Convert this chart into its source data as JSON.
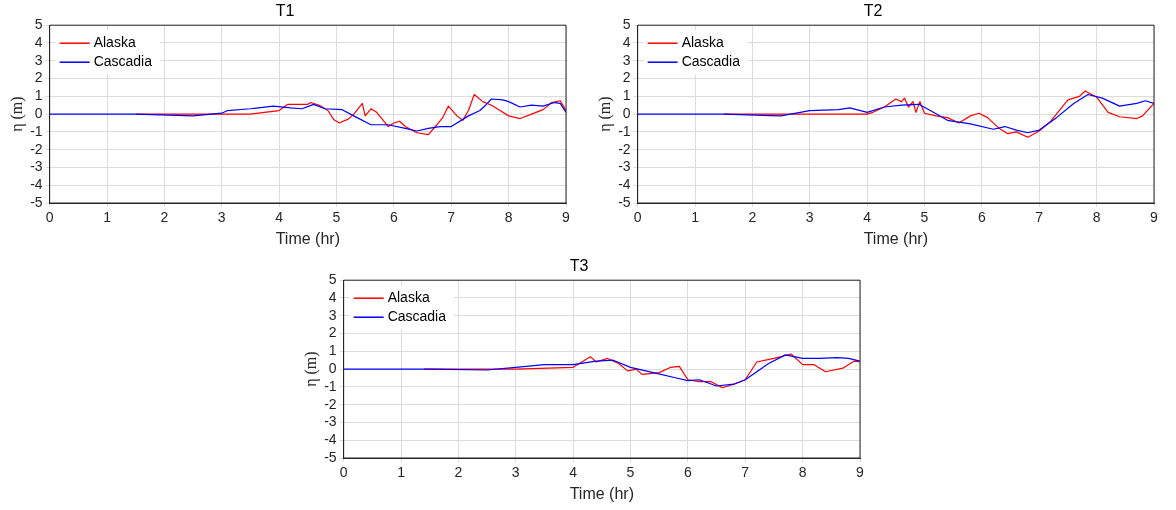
{
  "chart_data": [
    {
      "type": "line",
      "title": "T1",
      "xlabel": "Time (hr)",
      "ylabel": "η (m)",
      "xlim": [
        0,
        9
      ],
      "ylim": [
        -5,
        5
      ],
      "xticks": [
        0,
        1,
        2,
        3,
        4,
        5,
        6,
        7,
        8,
        9
      ],
      "yticks": [
        -5,
        -4,
        -3,
        -2,
        -1,
        0,
        1,
        2,
        3,
        4,
        5
      ],
      "grid": true,
      "legend": "top left",
      "series": [
        {
          "name": "Alaska",
          "color": "#ff0000",
          "x": [
            1.5,
            2,
            3,
            3.5,
            4,
            4.15,
            4.3,
            4.5,
            4.55,
            4.7,
            4.85,
            4.95,
            5.05,
            5.15,
            5.2,
            5.3,
            5.35,
            5.45,
            5.5,
            5.6,
            5.7,
            5.8,
            5.9,
            6,
            6.1,
            6.2,
            6.4,
            6.6,
            6.75,
            6.85,
            6.95,
            7.1,
            7.2,
            7.3,
            7.4,
            7.55,
            7.7,
            7.85,
            8,
            8.2,
            8.4,
            8.6,
            8.75,
            8.9,
            9
          ],
          "values": [
            0,
            0,
            0,
            0,
            0.2,
            0.55,
            0.55,
            0.55,
            0.65,
            0.5,
            0.2,
            -0.3,
            -0.5,
            -0.35,
            -0.3,
            0,
            0.2,
            0.6,
            -0.1,
            0.3,
            0.1,
            -0.3,
            -0.7,
            -0.5,
            -0.4,
            -0.7,
            -1.05,
            -1.15,
            -0.6,
            -0.2,
            0.45,
            -0.1,
            -0.35,
            0.2,
            1.1,
            0.7,
            0.5,
            0.2,
            -0.1,
            -0.25,
            0,
            0.25,
            0.65,
            0.75,
            0.2
          ]
        },
        {
          "name": "Cascadia",
          "color": "#0000ff",
          "x": [
            0,
            1,
            1.5,
            2.5,
            3,
            3.1,
            3.5,
            3.9,
            4.2,
            4.4,
            4.6,
            4.8,
            5.1,
            5.3,
            5.6,
            5.9,
            6.2,
            6.4,
            6.6,
            6.8,
            7,
            7.3,
            7.5,
            7.6,
            7.7,
            7.9,
            8,
            8.2,
            8.4,
            8.6,
            8.8,
            8.9,
            9
          ],
          "values": [
            0,
            0,
            0,
            -0.1,
            0.05,
            0.2,
            0.3,
            0.45,
            0.35,
            0.3,
            0.55,
            0.3,
            0.25,
            -0.1,
            -0.6,
            -0.6,
            -0.8,
            -0.95,
            -0.8,
            -0.7,
            -0.7,
            -0.1,
            0.2,
            0.5,
            0.85,
            0.8,
            0.7,
            0.4,
            0.5,
            0.45,
            0.65,
            0.6,
            0.1
          ]
        }
      ]
    },
    {
      "type": "line",
      "title": "T2",
      "xlabel": "Time (hr)",
      "ylabel": "η (m)",
      "xlim": [
        0,
        9
      ],
      "ylim": [
        -5,
        5
      ],
      "xticks": [
        0,
        1,
        2,
        3,
        4,
        5,
        6,
        7,
        8,
        9
      ],
      "yticks": [
        -5,
        -4,
        -3,
        -2,
        -1,
        0,
        1,
        2,
        3,
        4,
        5
      ],
      "grid": true,
      "legend": "top left",
      "series": [
        {
          "name": "Alaska",
          "color": "#ff0000",
          "x": [
            1.5,
            2,
            3,
            4,
            4.1,
            4.3,
            4.5,
            4.6,
            4.65,
            4.72,
            4.8,
            4.85,
            4.92,
            5,
            5.2,
            5.4,
            5.6,
            5.8,
            5.95,
            6.1,
            6.3,
            6.45,
            6.6,
            6.8,
            7,
            7.2,
            7.5,
            7.7,
            7.8,
            8,
            8.2,
            8.4,
            8.7,
            8.8,
            9
          ],
          "values": [
            0,
            0,
            0,
            0,
            0.1,
            0.4,
            0.85,
            0.7,
            0.9,
            0.4,
            0.7,
            0.1,
            0.7,
            0.05,
            -0.1,
            -0.2,
            -0.5,
            -0.1,
            0.05,
            -0.2,
            -0.8,
            -1.1,
            -1,
            -1.3,
            -0.95,
            -0.4,
            0.8,
            1,
            1.3,
            0.95,
            0.1,
            -0.15,
            -0.25,
            -0.1,
            0.6
          ]
        },
        {
          "name": "Cascadia",
          "color": "#0000ff",
          "x": [
            0,
            1,
            1.5,
            2.5,
            3,
            3.5,
            3.7,
            4,
            4.3,
            4.6,
            4.9,
            5.1,
            5.4,
            5.8,
            6.2,
            6.4,
            6.6,
            6.8,
            7,
            7.3,
            7.6,
            7.85,
            8.1,
            8.4,
            8.7,
            8.85,
            9
          ],
          "values": [
            0,
            0,
            0,
            -0.1,
            0.2,
            0.25,
            0.35,
            0.1,
            0.4,
            0.5,
            0.55,
            0.2,
            -0.35,
            -0.55,
            -0.85,
            -0.7,
            -0.9,
            -1.05,
            -0.9,
            -0.2,
            0.6,
            1.1,
            0.9,
            0.45,
            0.6,
            0.75,
            0.6
          ]
        }
      ]
    },
    {
      "type": "line",
      "title": "T3",
      "xlabel": "Time (hr)",
      "ylabel": "η (m)",
      "xlim": [
        0,
        9
      ],
      "ylim": [
        -5,
        5
      ],
      "xticks": [
        0,
        1,
        2,
        3,
        4,
        5,
        6,
        7,
        8,
        9
      ],
      "yticks": [
        -5,
        -4,
        -3,
        -2,
        -1,
        0,
        1,
        2,
        3,
        4,
        5
      ],
      "grid": true,
      "legend": "top left",
      "series": [
        {
          "name": "Alaska",
          "color": "#ff0000",
          "x": [
            1.4,
            2,
            3,
            4,
            4.3,
            4.4,
            4.6,
            4.8,
            4.95,
            5.1,
            5.2,
            5.5,
            5.7,
            5.85,
            6,
            6.2,
            6.4,
            6.6,
            6.8,
            7,
            7.2,
            7.5,
            7.8,
            8,
            8.2,
            8.4,
            8.7,
            8.9,
            9
          ],
          "values": [
            0,
            0,
            0,
            0.1,
            0.7,
            0.4,
            0.6,
            0.3,
            -0.1,
            0,
            -0.3,
            -0.2,
            0.1,
            0.15,
            -0.6,
            -0.7,
            -0.7,
            -1.05,
            -0.85,
            -0.6,
            0.4,
            0.6,
            0.85,
            0.25,
            0.25,
            -0.15,
            0.05,
            0.45,
            0.4
          ]
        },
        {
          "name": "Cascadia",
          "color": "#0000ff",
          "x": [
            0,
            1,
            1.5,
            2.5,
            3,
            3.5,
            4,
            4.4,
            4.7,
            5,
            5.4,
            5.8,
            6,
            6.2,
            6.5,
            6.8,
            7,
            7.4,
            7.7,
            8,
            8.3,
            8.6,
            8.8,
            9
          ],
          "values": [
            0,
            0,
            0,
            -0.05,
            0.1,
            0.25,
            0.25,
            0.45,
            0.5,
            0.1,
            -0.2,
            -0.5,
            -0.65,
            -0.6,
            -0.95,
            -0.85,
            -0.6,
            0.3,
            0.8,
            0.6,
            0.6,
            0.65,
            0.6,
            0.45
          ]
        }
      ]
    }
  ]
}
